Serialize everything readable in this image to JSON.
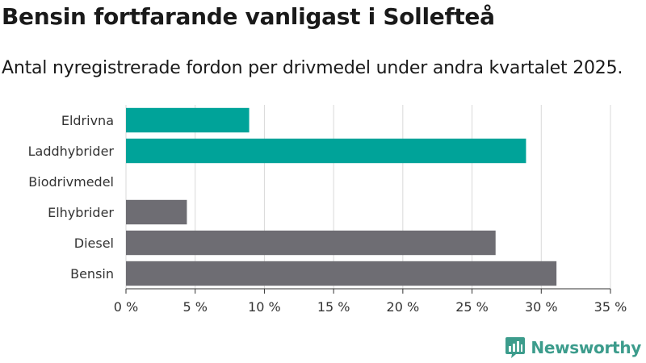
{
  "header": {
    "title": "Bensin fortfarande vanligast i Sollefteå",
    "subtitle": "Antal nyregistrerade fordon per drivmedel under andra kvartalet 2025."
  },
  "brand": {
    "name": "Newsworthy",
    "color": "#3c9c8c"
  },
  "chart_data": {
    "type": "bar",
    "orientation": "horizontal",
    "title": "Bensin fortfarande vanligast i Sollefteå",
    "subtitle": "Antal nyregistrerade fordon per drivmedel under andra kvartalet 2025.",
    "categories": [
      "Eldrivna",
      "Laddhybrider",
      "Biodrivmedel",
      "Elhybrider",
      "Diesel",
      "Bensin"
    ],
    "values": [
      8.9,
      28.9,
      0,
      4.4,
      26.7,
      31.1
    ],
    "colors": [
      "#00a399",
      "#00a399",
      "#00a399",
      "#6e6d73",
      "#6e6d73",
      "#6e6d73"
    ],
    "xlim": [
      0,
      35
    ],
    "xticks": [
      0,
      5,
      10,
      15,
      20,
      25,
      30,
      35
    ],
    "xtick_labels": [
      "0 %",
      "5 %",
      "10 %",
      "15 %",
      "20 %",
      "25 %",
      "30 %",
      "35 %"
    ],
    "unit": "%",
    "grid": "vertical",
    "xlabel": "",
    "ylabel": ""
  }
}
